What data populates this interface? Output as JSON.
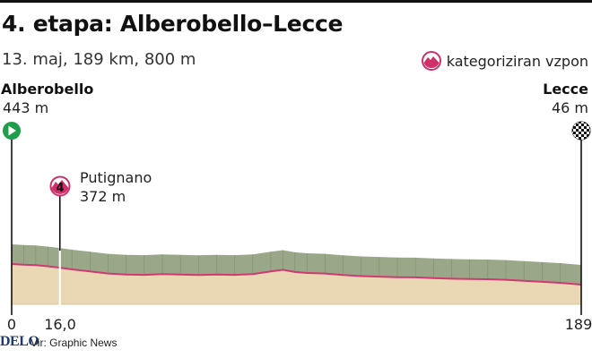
{
  "title": "4. etapa: Alberobello–Lecce",
  "subtitle": "13. maj, 189 km, 800 m",
  "legend": {
    "label": "kategoriziran vzpon",
    "icon": "mountain-icon"
  },
  "start": {
    "name": "Alberobello",
    "altitude": "443 m",
    "icon": "play-icon"
  },
  "finish": {
    "name": "Lecce",
    "altitude": "46 m",
    "icon": "checkered-flag-icon"
  },
  "waypoint": {
    "name": "Putignano",
    "altitude": "372 m",
    "category": "4",
    "km": 16.0
  },
  "km_labels": {
    "start": "0",
    "waypoint": "16,0",
    "finish": "189"
  },
  "source": "Vir: Graphic News",
  "logo": "DELO",
  "colors": {
    "profile_fill": "#ead7b4",
    "profile_top": "#9aa889",
    "road_line": "#cf3a72",
    "marker_start": "#1e9e4a",
    "climb_marker": "#d0306a"
  },
  "chart_data": {
    "type": "area",
    "title": "4. etapa: Alberobello–Lecce",
    "xlabel": "",
    "ylabel": "",
    "xlim": [
      0,
      189
    ],
    "x_unit": "km",
    "y_unit": "m",
    "x": [
      0,
      4,
      8,
      12,
      16,
      20,
      26,
      32,
      38,
      44,
      50,
      56,
      62,
      68,
      74,
      80,
      86,
      90,
      94,
      98,
      104,
      110,
      116,
      122,
      128,
      134,
      140,
      146,
      152,
      158,
      164,
      170,
      176,
      182,
      189
    ],
    "altitude": [
      443,
      430,
      420,
      400,
      372,
      340,
      300,
      260,
      240,
      235,
      250,
      240,
      230,
      240,
      235,
      250,
      300,
      330,
      290,
      270,
      260,
      230,
      210,
      200,
      190,
      185,
      170,
      160,
      155,
      150,
      140,
      120,
      100,
      80,
      46
    ]
  }
}
